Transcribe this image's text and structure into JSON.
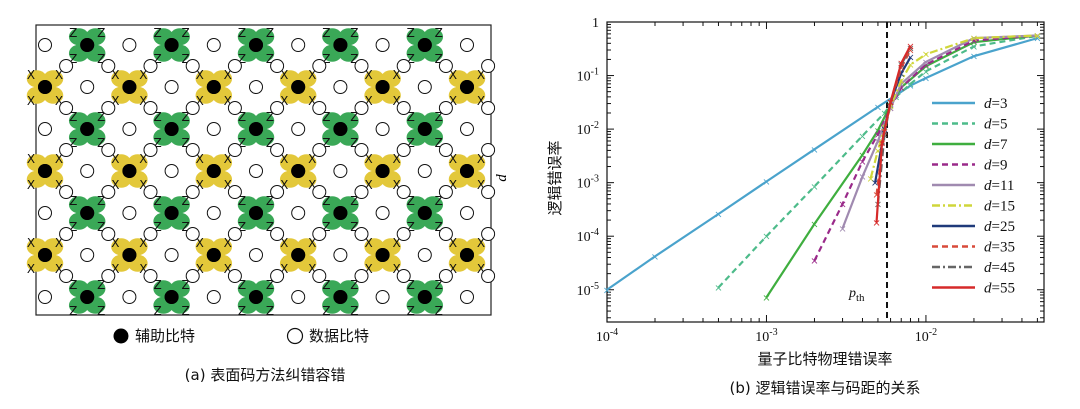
{
  "panel_a": {
    "caption": "(a) 表面码方法纠错容错",
    "d_label": "d",
    "stabilizer_letters": {
      "z": "Z",
      "x": "X"
    },
    "legend": {
      "ancilla": "辅助比特",
      "data": "数据比特"
    },
    "colors": {
      "z_plaquette": "#3aa857",
      "x_plaquette": "#e3c83a",
      "ancilla": "#000000",
      "data": "#ffffff"
    }
  },
  "panel_b": {
    "caption": "(b) 逻辑错误率与码距的关系",
    "xlabel": "量子比特物理错误率",
    "ylabel": "逻辑错误率",
    "threshold_label": "p",
    "threshold_sub": "th",
    "x_ticks": [
      {
        "mant": "10",
        "exp": "-4"
      },
      {
        "mant": "10",
        "exp": "-3"
      },
      {
        "mant": "10",
        "exp": "-2"
      }
    ],
    "y_ticks": [
      {
        "mant": "1",
        "exp": ""
      },
      {
        "mant": "10",
        "exp": "-1"
      },
      {
        "mant": "10",
        "exp": "-2"
      },
      {
        "mant": "10",
        "exp": "-3"
      },
      {
        "mant": "10",
        "exp": "-4"
      },
      {
        "mant": "10",
        "exp": "-5"
      }
    ]
  },
  "chart_data": {
    "type": "line",
    "xscale": "log",
    "yscale": "log",
    "xlim": [
      0.0001,
      0.055
    ],
    "ylim": [
      2.5e-06,
      1
    ],
    "threshold_x": 0.0057,
    "legend_placement": "right",
    "series": [
      {
        "name": "d=3",
        "d": "d",
        "n": "=3",
        "color": "#4aa3cc",
        "dash": "",
        "x": [
          0.0001,
          0.0002,
          0.0005,
          0.001,
          0.002,
          0.005,
          0.0065,
          0.008,
          0.01,
          0.02,
          0.05
        ],
        "y": [
          1e-05,
          4.2e-05,
          0.00026,
          0.00105,
          0.0042,
          0.026,
          0.043,
          0.065,
          0.09,
          0.23,
          0.5
        ]
      },
      {
        "name": "d=5",
        "d": "d",
        "n": "=5",
        "color": "#4dbb8a",
        "dash": "6 4",
        "x": [
          0.0005,
          0.001,
          0.002,
          0.004,
          0.0055,
          0.0065,
          0.008,
          0.01,
          0.02,
          0.05
        ],
        "y": [
          1.1e-05,
          0.0001,
          0.00085,
          0.0075,
          0.02,
          0.04,
          0.07,
          0.12,
          0.35,
          0.55
        ]
      },
      {
        "name": "d=7",
        "d": "d",
        "n": "=7",
        "color": "#3fae3f",
        "dash": "",
        "x": [
          0.001,
          0.002,
          0.004,
          0.005,
          0.006,
          0.007,
          0.01,
          0.02,
          0.05
        ],
        "y": [
          7.2e-06,
          0.00017,
          0.0033,
          0.0095,
          0.028,
          0.06,
          0.15,
          0.42,
          0.56
        ]
      },
      {
        "name": "d=9",
        "d": "d",
        "n": "=9",
        "color": "#9a2a8a",
        "dash": "6 4",
        "x": [
          0.002,
          0.003,
          0.004,
          0.005,
          0.006,
          0.007,
          0.01,
          0.02,
          0.05
        ],
        "y": [
          3.5e-05,
          0.0004,
          0.0025,
          0.008,
          0.025,
          0.06,
          0.16,
          0.45,
          0.56
        ]
      },
      {
        "name": "d=11",
        "d": "d",
        "n": "=11",
        "color": "#a08ab0",
        "dash": "",
        "x": [
          0.003,
          0.004,
          0.005,
          0.006,
          0.007,
          0.01,
          0.02,
          0.05
        ],
        "y": [
          0.00014,
          0.0013,
          0.006,
          0.025,
          0.07,
          0.18,
          0.5,
          0.56
        ]
      },
      {
        "name": "d=15",
        "d": "d",
        "n": "=15",
        "color": "#cfd63a",
        "dash": "8 3 2 3",
        "x": [
          0.0045,
          0.005,
          0.0055,
          0.006,
          0.007,
          0.008,
          0.01,
          0.02,
          0.05
        ],
        "y": [
          0.0012,
          0.004,
          0.011,
          0.027,
          0.08,
          0.16,
          0.25,
          0.5,
          0.56
        ]
      },
      {
        "name": "d=25",
        "d": "d",
        "n": "=25",
        "color": "#1f3a7a",
        "dash": "",
        "x": [
          0.0048,
          0.0055,
          0.006,
          0.007,
          0.008
        ],
        "y": [
          0.001,
          0.01,
          0.032,
          0.11,
          0.22
        ]
      },
      {
        "name": "d=35",
        "d": "d",
        "n": "=35",
        "color": "#d84a3a",
        "dash": "6 4",
        "x": [
          0.0049,
          0.0055,
          0.006,
          0.007,
          0.008
        ],
        "y": [
          0.0006,
          0.009,
          0.032,
          0.14,
          0.3
        ]
      },
      {
        "name": "d=45",
        "d": "d",
        "n": "=45",
        "color": "#666666",
        "dash": "8 3 2 3",
        "x": [
          0.005,
          0.0055,
          0.006,
          0.007,
          0.008
        ],
        "y": [
          0.0004,
          0.008,
          0.032,
          0.16,
          0.33
        ]
      },
      {
        "name": "d=55",
        "d": "d",
        "n": "=55",
        "color": "#d62a2a",
        "dash": "",
        "x": [
          0.0049,
          0.0053,
          0.006,
          0.007,
          0.008
        ],
        "y": [
          0.00018,
          0.0055,
          0.032,
          0.17,
          0.36
        ]
      }
    ]
  }
}
